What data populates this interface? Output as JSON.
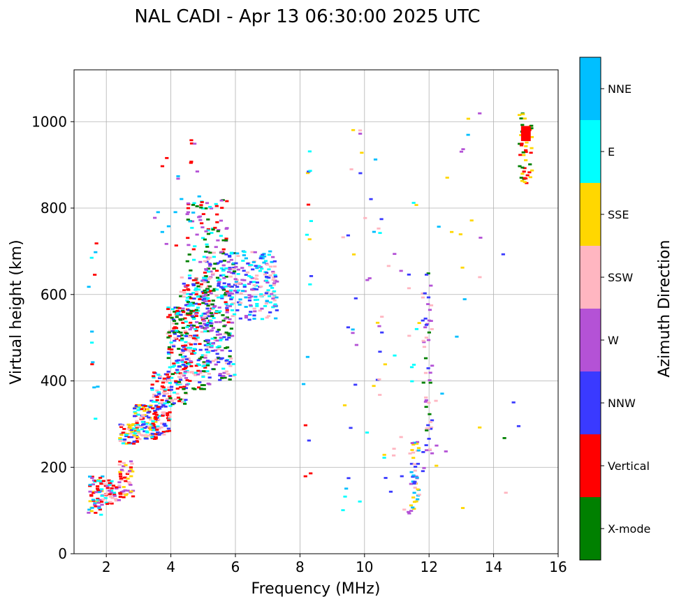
{
  "chart_data": {
    "type": "scatter",
    "title": "NAL CADI - Apr 13 06:30:00 2025 UTC",
    "xlabel": "Frequency (MHz)",
    "ylabel": "Virtual height (km)",
    "xlim": [
      1,
      16
    ],
    "ylim": [
      0,
      1120
    ],
    "xticks": [
      2,
      4,
      6,
      8,
      10,
      12,
      14,
      16
    ],
    "yticks": [
      0,
      200,
      400,
      600,
      800,
      1000
    ],
    "grid": true,
    "colorbar": {
      "label": "Azimuth Direction",
      "categories": [
        {
          "name": "X-mode",
          "color": "#008000"
        },
        {
          "name": "Vertical",
          "color": "#ff0000"
        },
        {
          "name": "NNW",
          "color": "#3a3aff"
        },
        {
          "name": "W",
          "color": "#b452d6"
        },
        {
          "name": "SSW",
          "color": "#ffb6c1"
        },
        {
          "name": "SSE",
          "color": "#ffd700"
        },
        {
          "name": "E",
          "color": "#00ffff"
        },
        {
          "name": "NNE",
          "color": "#00bfff"
        }
      ]
    },
    "segments": [
      {
        "f0": 1.45,
        "f1": 1.9,
        "h0": 90,
        "h1": 180,
        "dir": [
          "E",
          "Vertical",
          "NNE",
          "SSE",
          "W"
        ],
        "n": 60
      },
      {
        "f0": 1.9,
        "f1": 2.4,
        "h0": 115,
        "h1": 175,
        "dir": [
          "Vertical",
          "W",
          "E",
          "SSW"
        ],
        "n": 40
      },
      {
        "f0": 2.4,
        "f1": 2.85,
        "h0": 130,
        "h1": 215,
        "dir": [
          "Vertical",
          "SSW",
          "W",
          "SSE"
        ],
        "n": 50
      },
      {
        "f0": 2.4,
        "f1": 3.0,
        "h0": 250,
        "h1": 300,
        "dir": [
          "SSW",
          "Vertical",
          "SSE",
          "E",
          "NNW"
        ],
        "n": 60
      },
      {
        "f0": 2.85,
        "f1": 3.6,
        "h0": 265,
        "h1": 345,
        "dir": [
          "Vertical",
          "SSW",
          "SSE",
          "E",
          "NNW"
        ],
        "n": 110
      },
      {
        "f0": 3.4,
        "f1": 4.0,
        "h0": 275,
        "h1": 420,
        "dir": [
          "Vertical",
          "SSW",
          "E",
          "NNW"
        ],
        "n": 120
      },
      {
        "f0": 3.9,
        "f1": 4.5,
        "h0": 345,
        "h1": 570,
        "dir": [
          "Vertical",
          "E",
          "SSW",
          "NNW",
          "X-mode"
        ],
        "n": 140
      },
      {
        "f0": 4.3,
        "f1": 5.2,
        "h0": 380,
        "h1": 640,
        "dir": [
          "Vertical",
          "X-mode",
          "NNW",
          "E",
          "W",
          "SSW"
        ],
        "n": 210
      },
      {
        "f0": 4.5,
        "f1": 5.8,
        "h0": 520,
        "h1": 820,
        "dir": [
          "Vertical",
          "X-mode",
          "E",
          "W"
        ],
        "n": 160
      },
      {
        "f0": 5.0,
        "f1": 6.0,
        "h0": 400,
        "h1": 700,
        "dir": [
          "X-mode",
          "NNW",
          "W",
          "E",
          "SSW"
        ],
        "n": 220
      },
      {
        "f0": 5.8,
        "f1": 7.3,
        "h0": 540,
        "h1": 700,
        "dir": [
          "W",
          "SSW",
          "E",
          "NNW",
          "NNE"
        ],
        "n": 190
      },
      {
        "f0": 3.5,
        "f1": 4.9,
        "h0": 700,
        "h1": 960,
        "dir": [
          "Vertical",
          "W",
          "NNE"
        ],
        "n": 22
      },
      {
        "f0": 1.45,
        "f1": 1.8,
        "h0": 280,
        "h1": 790,
        "dir": [
          "NNE",
          "E",
          "Vertical"
        ],
        "n": 12
      },
      {
        "f0": 8.1,
        "f1": 8.35,
        "h0": 140,
        "h1": 950,
        "dir": [
          "NNE",
          "E",
          "SSE",
          "NNW",
          "Vertical"
        ],
        "n": 16
      },
      {
        "f0": 9.3,
        "f1": 10.4,
        "h0": 90,
        "h1": 1000,
        "dir": [
          "NNE",
          "NNW",
          "W",
          "SSE",
          "SSW",
          "E"
        ],
        "n": 30
      },
      {
        "f0": 10.4,
        "f1": 11.7,
        "h0": 90,
        "h1": 830,
        "dir": [
          "SSE",
          "W",
          "SSW",
          "NNW",
          "E"
        ],
        "n": 40
      },
      {
        "f0": 11.4,
        "f1": 11.7,
        "h0": 90,
        "h1": 260,
        "dir": [
          "W",
          "SSE",
          "NNW",
          "SSW",
          "NNE"
        ],
        "n": 40
      },
      {
        "f0": 11.8,
        "f1": 12.1,
        "h0": 180,
        "h1": 650,
        "dir": [
          "W",
          "X-mode",
          "NNW",
          "SSW"
        ],
        "n": 55
      },
      {
        "f0": 12.2,
        "f1": 13.6,
        "h0": 90,
        "h1": 1020,
        "dir": [
          "SSE",
          "W",
          "SSW",
          "NNE"
        ],
        "n": 22
      },
      {
        "f0": 14.2,
        "f1": 14.8,
        "h0": 120,
        "h1": 820,
        "dir": [
          "SSE",
          "NNW",
          "SSW",
          "X-mode"
        ],
        "n": 5
      },
      {
        "f0": 14.8,
        "f1": 15.2,
        "h0": 850,
        "h1": 1020,
        "dir": [
          "Vertical",
          "SSE",
          "X-mode"
        ],
        "n": 45
      }
    ],
    "dense_block": {
      "f0": 14.85,
      "f1": 15.15,
      "h0": 955,
      "h1": 990,
      "dir": "Vertical"
    }
  }
}
